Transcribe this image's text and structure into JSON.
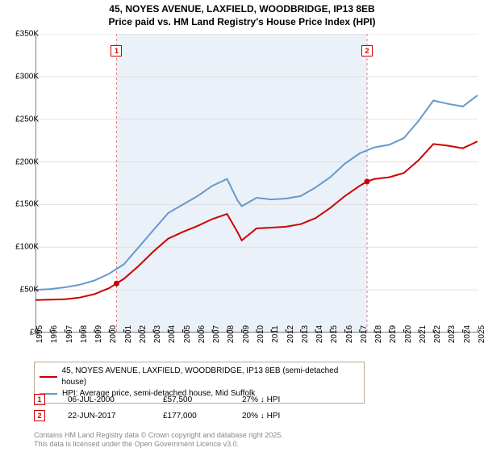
{
  "title": {
    "line1": "45, NOYES AVENUE, LAXFIELD, WOODBRIDGE, IP13 8EB",
    "line2": "Price paid vs. HM Land Registry's House Price Index (HPI)",
    "fontsize": 12,
    "color": "#000000"
  },
  "chart": {
    "type": "line",
    "background_color": "#ffffff",
    "shaded_band_color": "#eaf1f8",
    "grid_color": "#e0e0e0",
    "axis_color": "#000000",
    "x_range": [
      1995,
      2025
    ],
    "y_range": [
      0,
      350000
    ],
    "y_ticks": [
      0,
      50000,
      100000,
      150000,
      200000,
      250000,
      300000,
      350000
    ],
    "y_tick_labels": [
      "£0",
      "£50K",
      "£100K",
      "£150K",
      "£200K",
      "£250K",
      "£300K",
      "£350K"
    ],
    "x_ticks": [
      1995,
      1996,
      1997,
      1998,
      1999,
      2000,
      2001,
      2002,
      2003,
      2004,
      2005,
      2006,
      2007,
      2008,
      2009,
      2010,
      2011,
      2012,
      2013,
      2014,
      2015,
      2016,
      2017,
      2018,
      2019,
      2020,
      2021,
      2022,
      2023,
      2024,
      2025
    ],
    "shaded_band": {
      "x_start": 2000.5,
      "x_end": 2017.5
    },
    "sale_lines": [
      {
        "x": 2000.5,
        "color": "#e57f7f",
        "dash": "3,3"
      },
      {
        "x": 2017.5,
        "color": "#e57f7f",
        "dash": "3,3"
      }
    ],
    "series": [
      {
        "name": "price_paid",
        "label": "45, NOYES AVENUE, LAXFIELD, WOODBRIDGE, IP13 8EB (semi-detached house)",
        "color": "#cc0000",
        "line_width": 2,
        "points": [
          [
            1995,
            38000
          ],
          [
            1996,
            38500
          ],
          [
            1997,
            39000
          ],
          [
            1998,
            41000
          ],
          [
            1999,
            45000
          ],
          [
            2000,
            52000
          ],
          [
            2000.5,
            57500
          ],
          [
            2001,
            63000
          ],
          [
            2002,
            78000
          ],
          [
            2003,
            95000
          ],
          [
            2004,
            110000
          ],
          [
            2005,
            118000
          ],
          [
            2006,
            125000
          ],
          [
            2007,
            133000
          ],
          [
            2008,
            139000
          ],
          [
            2008.7,
            118000
          ],
          [
            2009,
            108000
          ],
          [
            2009.5,
            115000
          ],
          [
            2010,
            122000
          ],
          [
            2011,
            123000
          ],
          [
            2012,
            124000
          ],
          [
            2013,
            127000
          ],
          [
            2014,
            134000
          ],
          [
            2015,
            146000
          ],
          [
            2016,
            160000
          ],
          [
            2017,
            172000
          ],
          [
            2017.5,
            177000
          ],
          [
            2018,
            180000
          ],
          [
            2019,
            182000
          ],
          [
            2020,
            187000
          ],
          [
            2021,
            202000
          ],
          [
            2022,
            221000
          ],
          [
            2023,
            219000
          ],
          [
            2024,
            216000
          ],
          [
            2025,
            224000
          ]
        ]
      },
      {
        "name": "hpi",
        "label": "HPI: Average price, semi-detached house, Mid Suffolk",
        "color": "#6699cc",
        "line_width": 2,
        "points": [
          [
            1995,
            50000
          ],
          [
            1996,
            51000
          ],
          [
            1997,
            53000
          ],
          [
            1998,
            56000
          ],
          [
            1999,
            61000
          ],
          [
            2000,
            69000
          ],
          [
            2001,
            80000
          ],
          [
            2002,
            100000
          ],
          [
            2003,
            120000
          ],
          [
            2004,
            140000
          ],
          [
            2005,
            150000
          ],
          [
            2006,
            160000
          ],
          [
            2007,
            172000
          ],
          [
            2008,
            180000
          ],
          [
            2008.7,
            155000
          ],
          [
            2009,
            148000
          ],
          [
            2009.5,
            153000
          ],
          [
            2010,
            158000
          ],
          [
            2011,
            156000
          ],
          [
            2012,
            157000
          ],
          [
            2013,
            160000
          ],
          [
            2014,
            170000
          ],
          [
            2015,
            182000
          ],
          [
            2016,
            198000
          ],
          [
            2017,
            210000
          ],
          [
            2018,
            217000
          ],
          [
            2019,
            220000
          ],
          [
            2020,
            228000
          ],
          [
            2021,
            248000
          ],
          [
            2022,
            272000
          ],
          [
            2023,
            268000
          ],
          [
            2024,
            265000
          ],
          [
            2025,
            278000
          ]
        ]
      }
    ],
    "sale_markers": [
      {
        "idx": "1",
        "x": 2000.5,
        "dot_y": 57500
      },
      {
        "idx": "2",
        "x": 2017.5,
        "dot_y": 177000
      }
    ]
  },
  "legend": {
    "border_color": "#bca98a",
    "fontsize": 10
  },
  "sales": [
    {
      "badge": "1",
      "date": "06-JUL-2000",
      "price": "£57,500",
      "delta": "27% ↓ HPI"
    },
    {
      "badge": "2",
      "date": "22-JUN-2017",
      "price": "£177,000",
      "delta": "20% ↓ HPI"
    }
  ],
  "footer": {
    "line1": "Contains HM Land Registry data © Crown copyright and database right 2025.",
    "line2": "This data is licensed under the Open Government Licence v3.0."
  }
}
